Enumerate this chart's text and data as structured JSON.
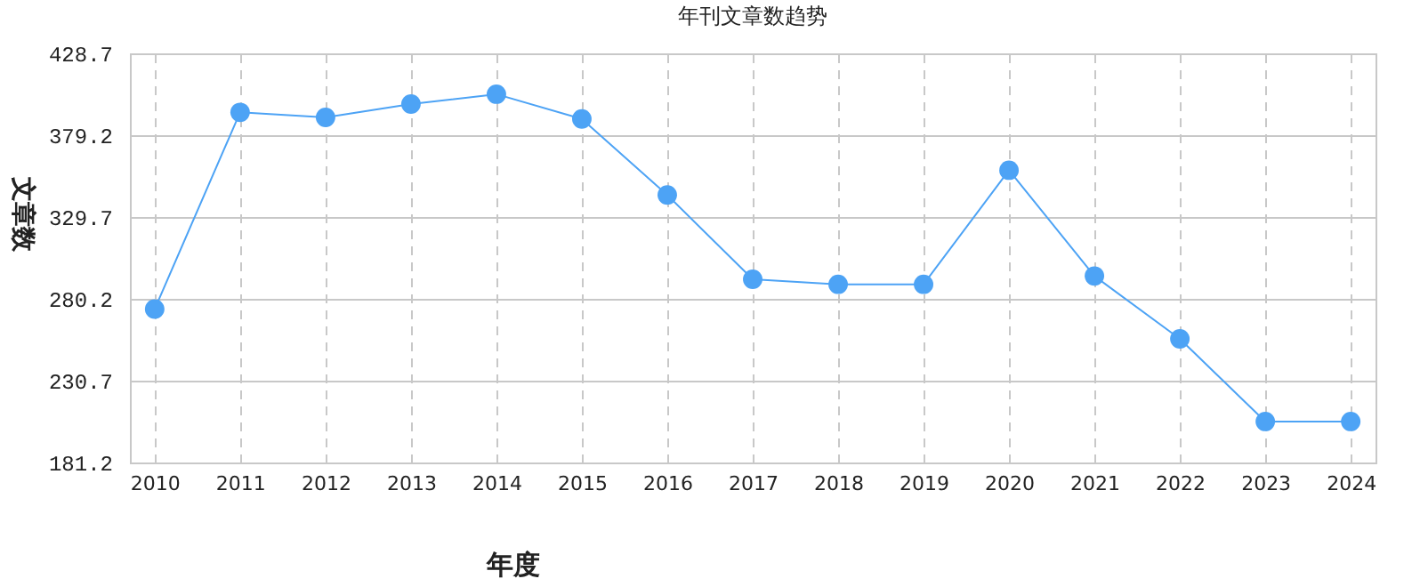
{
  "chart_data": {
    "type": "line",
    "title": "年刊文章数趋势",
    "xlabel": "年度",
    "ylabel": "文章数",
    "categories": [
      "2010",
      "2011",
      "2012",
      "2013",
      "2014",
      "2015",
      "2016",
      "2017",
      "2018",
      "2019",
      "2020",
      "2021",
      "2022",
      "2023",
      "2024"
    ],
    "series": [
      {
        "color": "#4da3f5",
        "values": [
          274,
          393,
          390,
          398,
          404,
          389,
          343,
          292,
          289,
          289,
          358,
          294,
          256,
          206,
          206
        ]
      }
    ],
    "ylim": [
      181.2,
      428.7
    ],
    "yticks": [
      181.2,
      230.7,
      280.2,
      329.7,
      379.2,
      428.7
    ],
    "grid": true,
    "marker": "circle",
    "line_style": "solid"
  }
}
